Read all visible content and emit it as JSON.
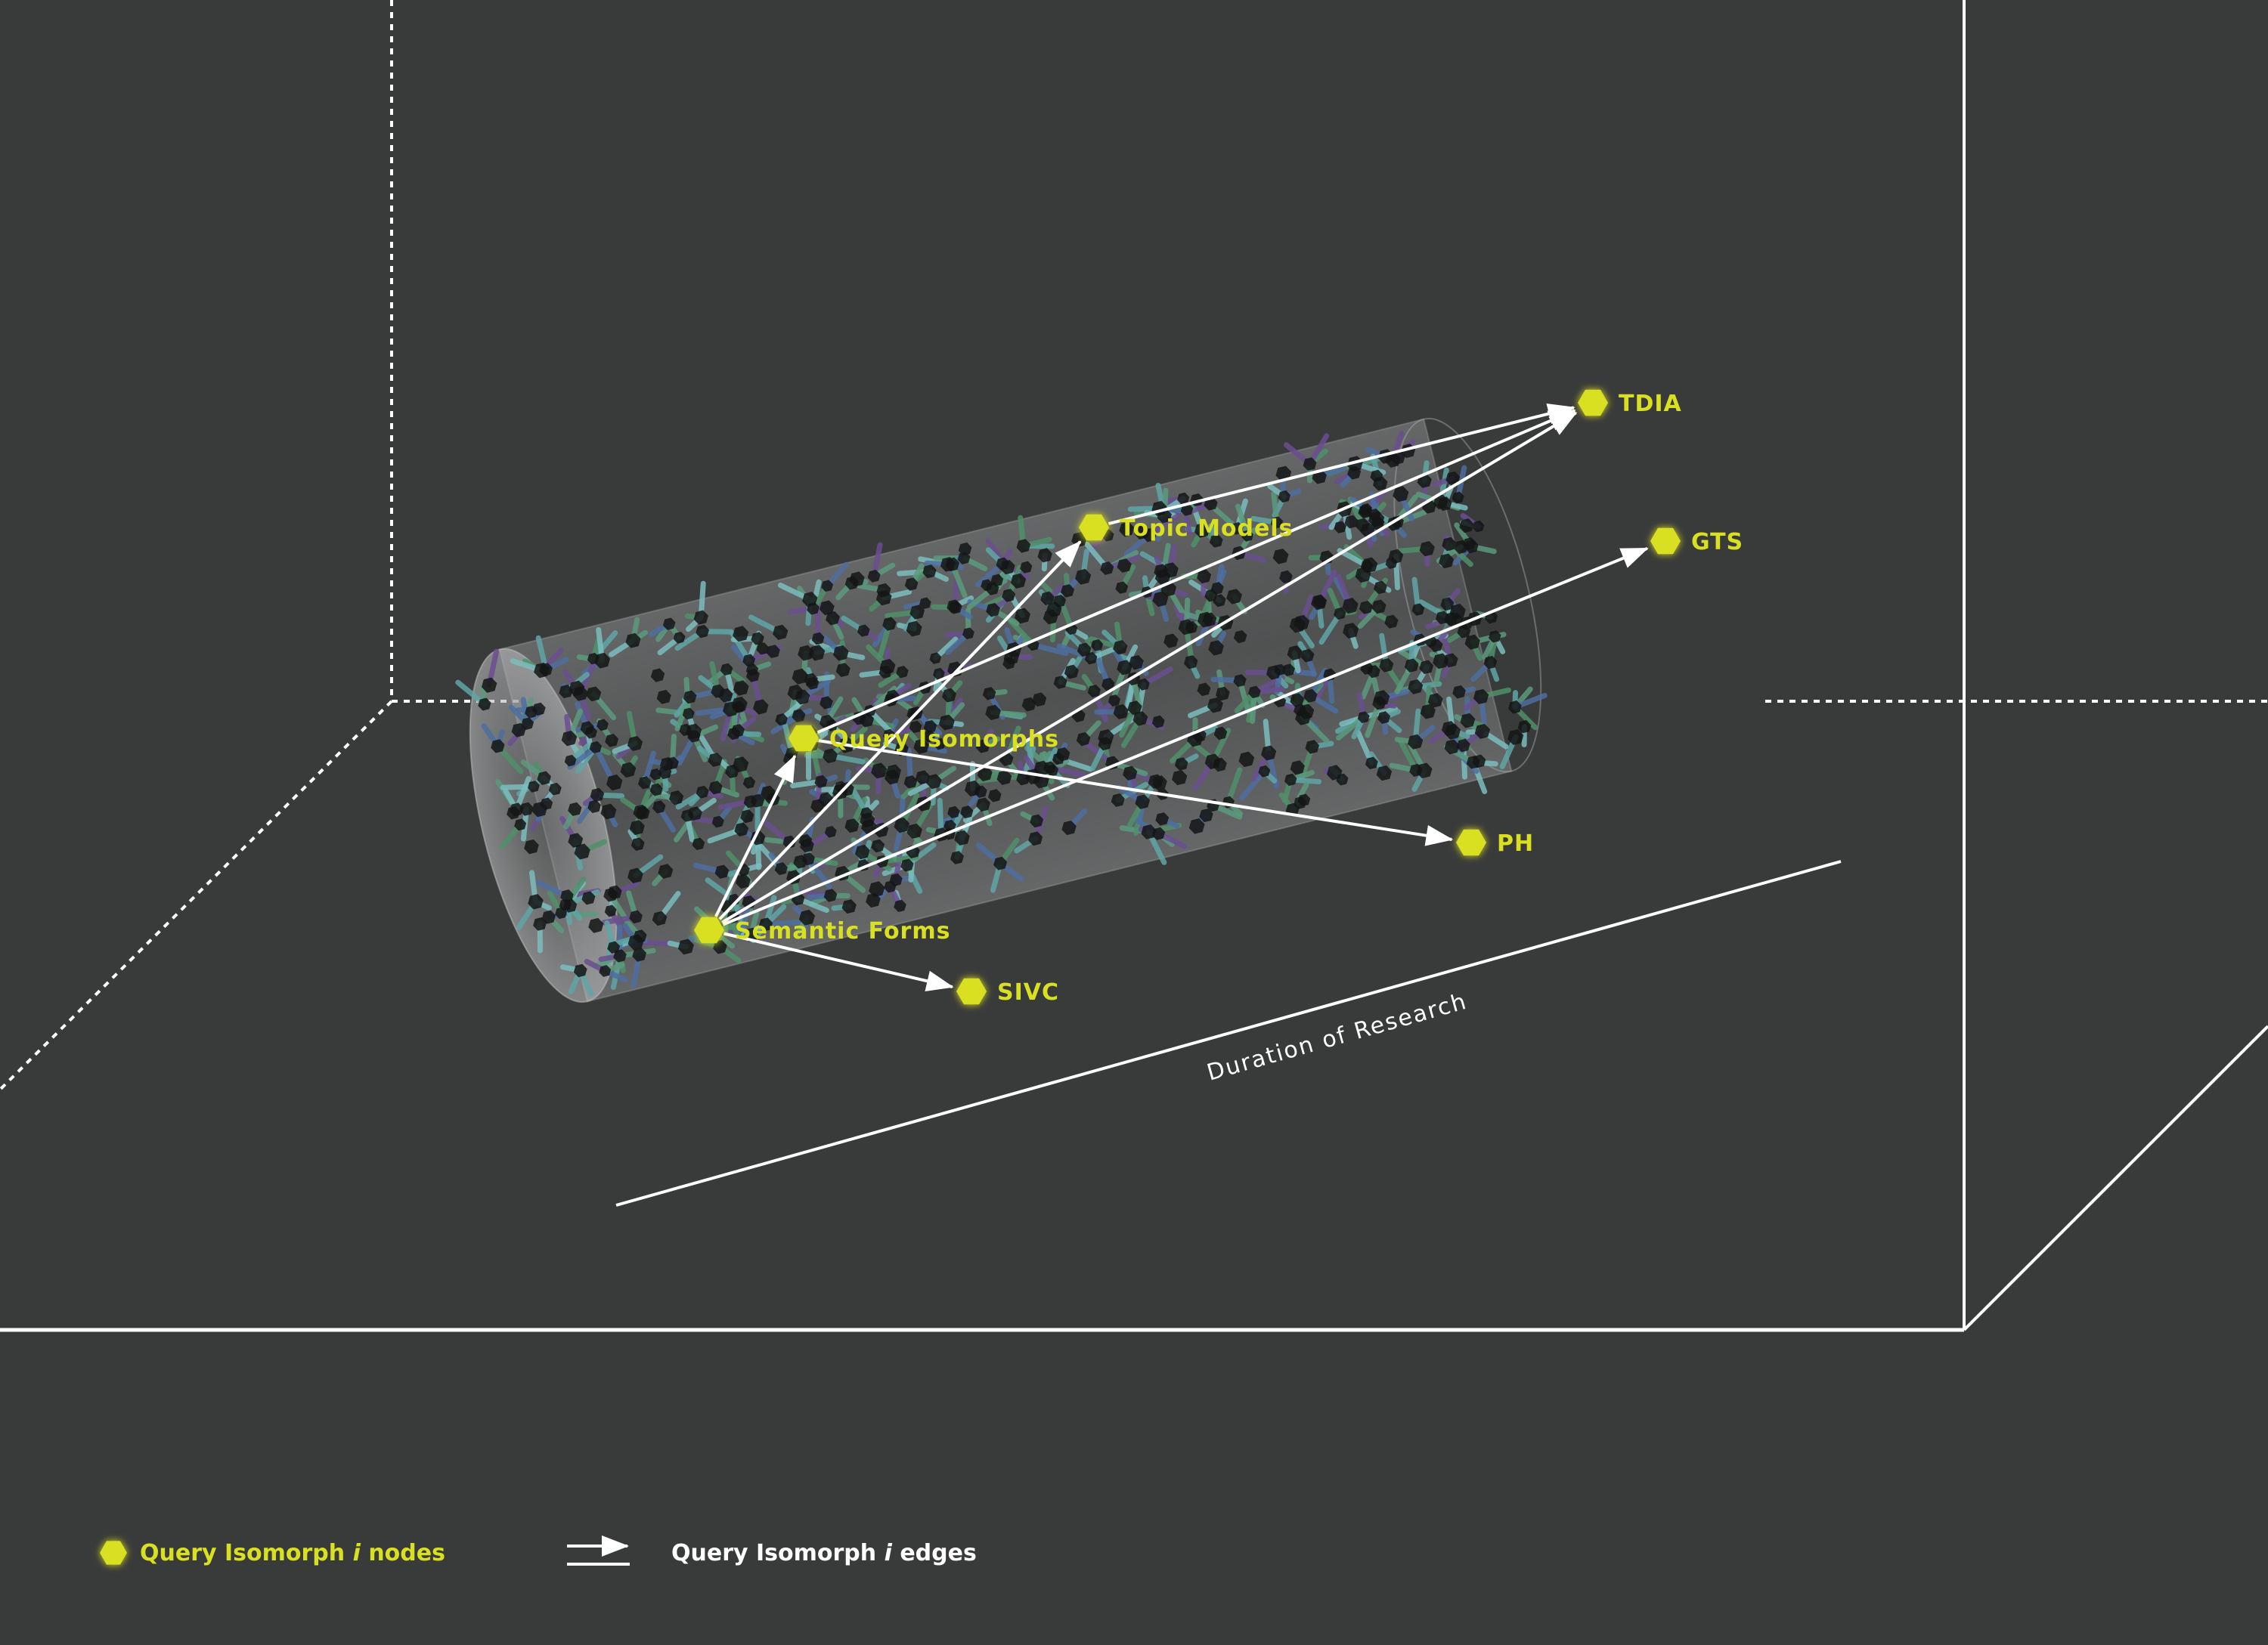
{
  "axis_label": "Duration of Research",
  "nodes": [
    {
      "id": "tdia",
      "label": "TDIA"
    },
    {
      "id": "topic-models",
      "label": "Topic Models"
    },
    {
      "id": "gts",
      "label": "GTS"
    },
    {
      "id": "query-isomorphs",
      "label": "Query Isomorphs"
    },
    {
      "id": "ph",
      "label": "PH"
    },
    {
      "id": "semantic-forms",
      "label": "Semantic Forms"
    },
    {
      "id": "sivc",
      "label": "SIVC"
    }
  ],
  "edges": [
    {
      "from": "Query Isomorphs",
      "to": "TDIA"
    },
    {
      "from": "Query Isomorphs",
      "to": "PH"
    },
    {
      "from": "Semantic Forms",
      "to": "Query Isomorphs"
    },
    {
      "from": "Semantic Forms",
      "to": "Topic Models"
    },
    {
      "from": "Semantic Forms",
      "to": "TDIA"
    },
    {
      "from": "Semantic Forms",
      "to": "GTS"
    },
    {
      "from": "Semantic Forms",
      "to": "SIVC"
    },
    {
      "from": "Topic Models",
      "to": "TDIA"
    }
  ],
  "legend": {
    "nodes": {
      "prefix": "Query Isomorph ",
      "italic": "i",
      "suffix": " nodes"
    },
    "edges": {
      "prefix": "Query Isomorph ",
      "italic": "i",
      "suffix": " edges"
    }
  },
  "colors": {
    "background": "#393a3a",
    "node": "#d9e021",
    "edge": "#ffffff",
    "frame": "#ffffff"
  }
}
